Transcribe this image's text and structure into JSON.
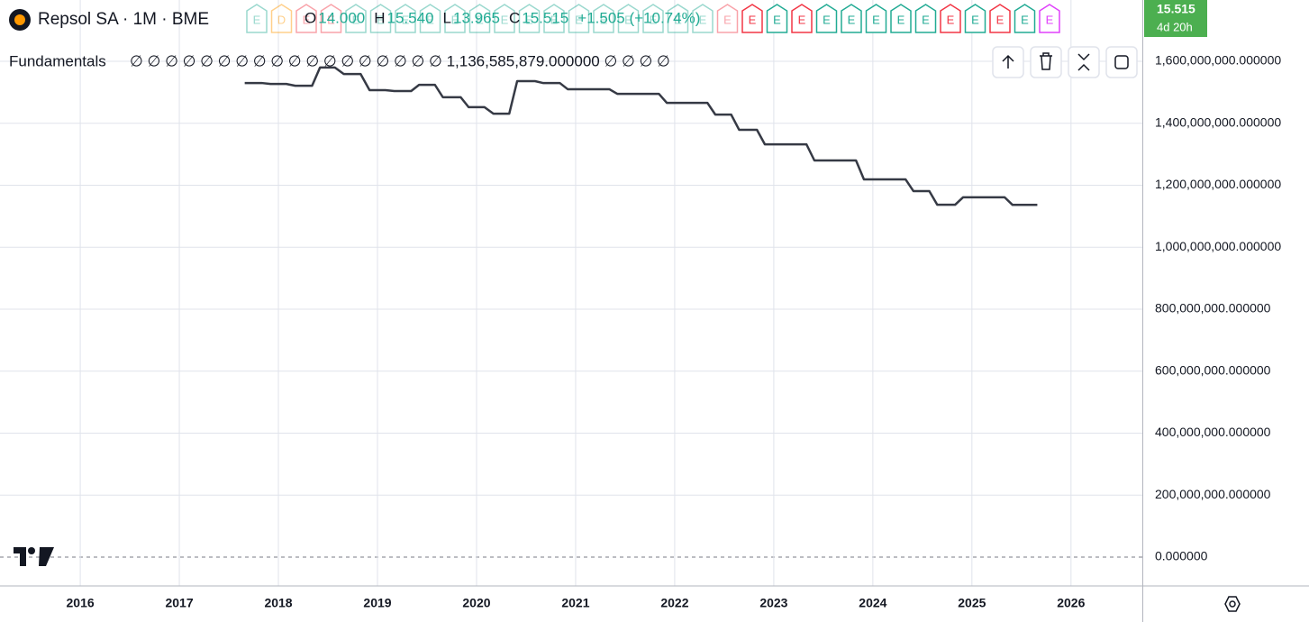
{
  "chart_data": {
    "type": "line",
    "symbol": "Repsol SA · 1M · BME",
    "ohlc": [
      {
        "key": "O",
        "value": "14.000"
      },
      {
        "key": "H",
        "value": "15.540"
      },
      {
        "key": "L",
        "value": "13.965"
      },
      {
        "key": "C",
        "value": "15.515"
      }
    ],
    "change": "+1.505 (+10.74%)",
    "price_badge": "15.515",
    "countdown": "4d 20h",
    "indicator_name": "Fundamentals",
    "indicator_values": "∅ ∅ ∅ ∅ ∅ ∅ ∅ ∅ ∅ ∅ ∅ ∅ ∅ ∅ ∅ ∅ ∅ ∅ 1,136,585,879.000000 ∅ ∅ ∅ ∅",
    "events": [
      {
        "label": "E",
        "color": "#22ab94"
      },
      {
        "label": "D",
        "color": "#ff9800"
      },
      {
        "label": "E",
        "color": "#f23645"
      },
      {
        "label": "E",
        "color": "#f23645"
      },
      {
        "label": "E",
        "color": "#22ab94"
      },
      {
        "label": "E",
        "color": "#22ab94"
      },
      {
        "label": "E",
        "color": "#22ab94"
      },
      {
        "label": "E",
        "color": "#22ab94"
      },
      {
        "label": "E",
        "color": "#22ab94"
      },
      {
        "label": "E",
        "color": "#22ab94"
      },
      {
        "label": "E",
        "color": "#22ab94"
      },
      {
        "label": "E",
        "color": "#22ab94"
      },
      {
        "label": "E",
        "color": "#22ab94"
      },
      {
        "label": "E",
        "color": "#22ab94"
      },
      {
        "label": "E",
        "color": "#22ab94"
      },
      {
        "label": "E",
        "color": "#22ab94"
      },
      {
        "label": "E",
        "color": "#22ab94"
      },
      {
        "label": "E",
        "color": "#22ab94"
      },
      {
        "label": "E",
        "color": "#22ab94"
      },
      {
        "label": "E",
        "color": "#f23645"
      },
      {
        "label": "E",
        "color": "#f23645"
      },
      {
        "label": "E",
        "color": "#22ab94"
      },
      {
        "label": "E",
        "color": "#f23645"
      },
      {
        "label": "E",
        "color": "#22ab94"
      },
      {
        "label": "E",
        "color": "#22ab94"
      },
      {
        "label": "E",
        "color": "#22ab94"
      },
      {
        "label": "E",
        "color": "#22ab94"
      },
      {
        "label": "E",
        "color": "#22ab94"
      },
      {
        "label": "E",
        "color": "#f23645"
      },
      {
        "label": "E",
        "color": "#22ab94"
      },
      {
        "label": "E",
        "color": "#f23645"
      },
      {
        "label": "E",
        "color": "#22ab94"
      },
      {
        "label": "E",
        "color": "#e040fb"
      }
    ],
    "x": [
      2017.66,
      2017.83,
      2017.92,
      2018.08,
      2018.17,
      2018.34,
      2018.42,
      2018.57,
      2018.66,
      2018.83,
      2018.92,
      2019.08,
      2019.17,
      2019.34,
      2019.42,
      2019.58,
      2019.66,
      2019.84,
      2019.92,
      2020.08,
      2020.17,
      2020.33,
      2020.41,
      2020.59,
      2020.67,
      2020.84,
      2020.92,
      2021.34,
      2021.42,
      2021.84,
      2021.92,
      2022.33,
      2022.41,
      2022.57,
      2022.65,
      2022.83,
      2022.91,
      2023.33,
      2023.41,
      2023.83,
      2023.91,
      2024.33,
      2024.41,
      2024.57,
      2024.65,
      2024.83,
      2024.91,
      2025.33,
      2025.41,
      2025.66
    ],
    "series": [
      {
        "color": "#363a45",
        "values": [
          1530000000,
          1530000000,
          1527000000,
          1527000000,
          1521000000,
          1521000000,
          1580000000,
          1580000000,
          1559000000,
          1559000000,
          1507000000,
          1507000000,
          1504000000,
          1504000000,
          1524000000,
          1524000000,
          1484000000,
          1484000000,
          1452000000,
          1452000000,
          1431000000,
          1431000000,
          1536000000,
          1536000000,
          1530000000,
          1530000000,
          1510000000,
          1510000000,
          1495000000,
          1495000000,
          1466000000,
          1466000000,
          1428000000,
          1428000000,
          1379000000,
          1379000000,
          1332000000,
          1332000000,
          1280000000,
          1280000000,
          1219000000,
          1219000000,
          1181000000,
          1181000000,
          1137000000,
          1137000000,
          1161000000,
          1161000000,
          1136585879,
          1136585879
        ]
      }
    ],
    "xlim": [
      2015.19,
      2026.72
    ],
    "xticks": [
      2016,
      2017,
      2018,
      2019,
      2020,
      2021,
      2022,
      2023,
      2024,
      2025,
      2026
    ],
    "ylim": [
      -93090000,
      1797820000
    ],
    "yticks": [
      {
        "value": 0,
        "label": "0.000000"
      },
      {
        "value": 200000000,
        "label": "200,000,000.000000"
      },
      {
        "value": 400000000,
        "label": "400,000,000.000000"
      },
      {
        "value": 600000000,
        "label": "600,000,000.000000"
      },
      {
        "value": 800000000,
        "label": "800,000,000.000000"
      },
      {
        "value": 1000000000,
        "label": "1,000,000,000.000000"
      },
      {
        "value": 1200000000,
        "label": "1,200,000,000.000000"
      },
      {
        "value": 1400000000,
        "label": "1,400,000,000.000000"
      },
      {
        "value": 1600000000,
        "label": "1,600,000,000.000000"
      }
    ],
    "grid": true
  }
}
